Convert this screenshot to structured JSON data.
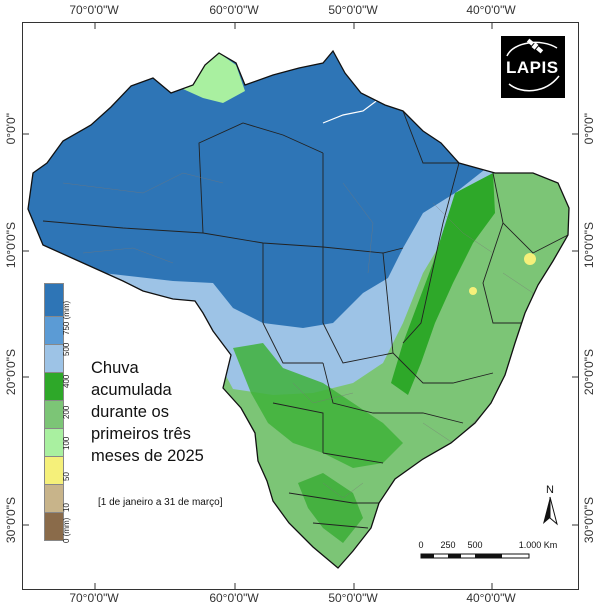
{
  "map": {
    "lon_ticks": [
      "70°0'0\"W",
      "60°0'0\"W",
      "50°0'0\"W",
      "40°0'0\"W"
    ],
    "lat_ticks": [
      "0°0'0\"",
      "10°0'0\"S",
      "20°0'0\"S",
      "30°0'0\"S"
    ],
    "title": "Chuva acumulada durante os primeiros três meses de 2025",
    "title_lines": [
      "Chuva",
      "acumulada",
      "durante os",
      "primeiros três",
      "meses de 2025"
    ],
    "period": "[1 de janeiro a 31 de março]",
    "logo": "LAPIS",
    "north": "N",
    "scale_labels": [
      "0",
      "250",
      "500",
      "1.000 Km"
    ],
    "legend": {
      "unit": "(mm)",
      "labels": [
        "750 (mm)",
        "500",
        "400",
        "200",
        "100",
        "50",
        "10",
        "0 (mm)"
      ],
      "colors": [
        "#2e75b6",
        "#5b9bd5",
        "#9dc3e6",
        "#2ea829",
        "#7cc576",
        "#a9f0a0",
        "#f5f07a",
        "#c8b48a",
        "#8a6b4a"
      ]
    }
  }
}
